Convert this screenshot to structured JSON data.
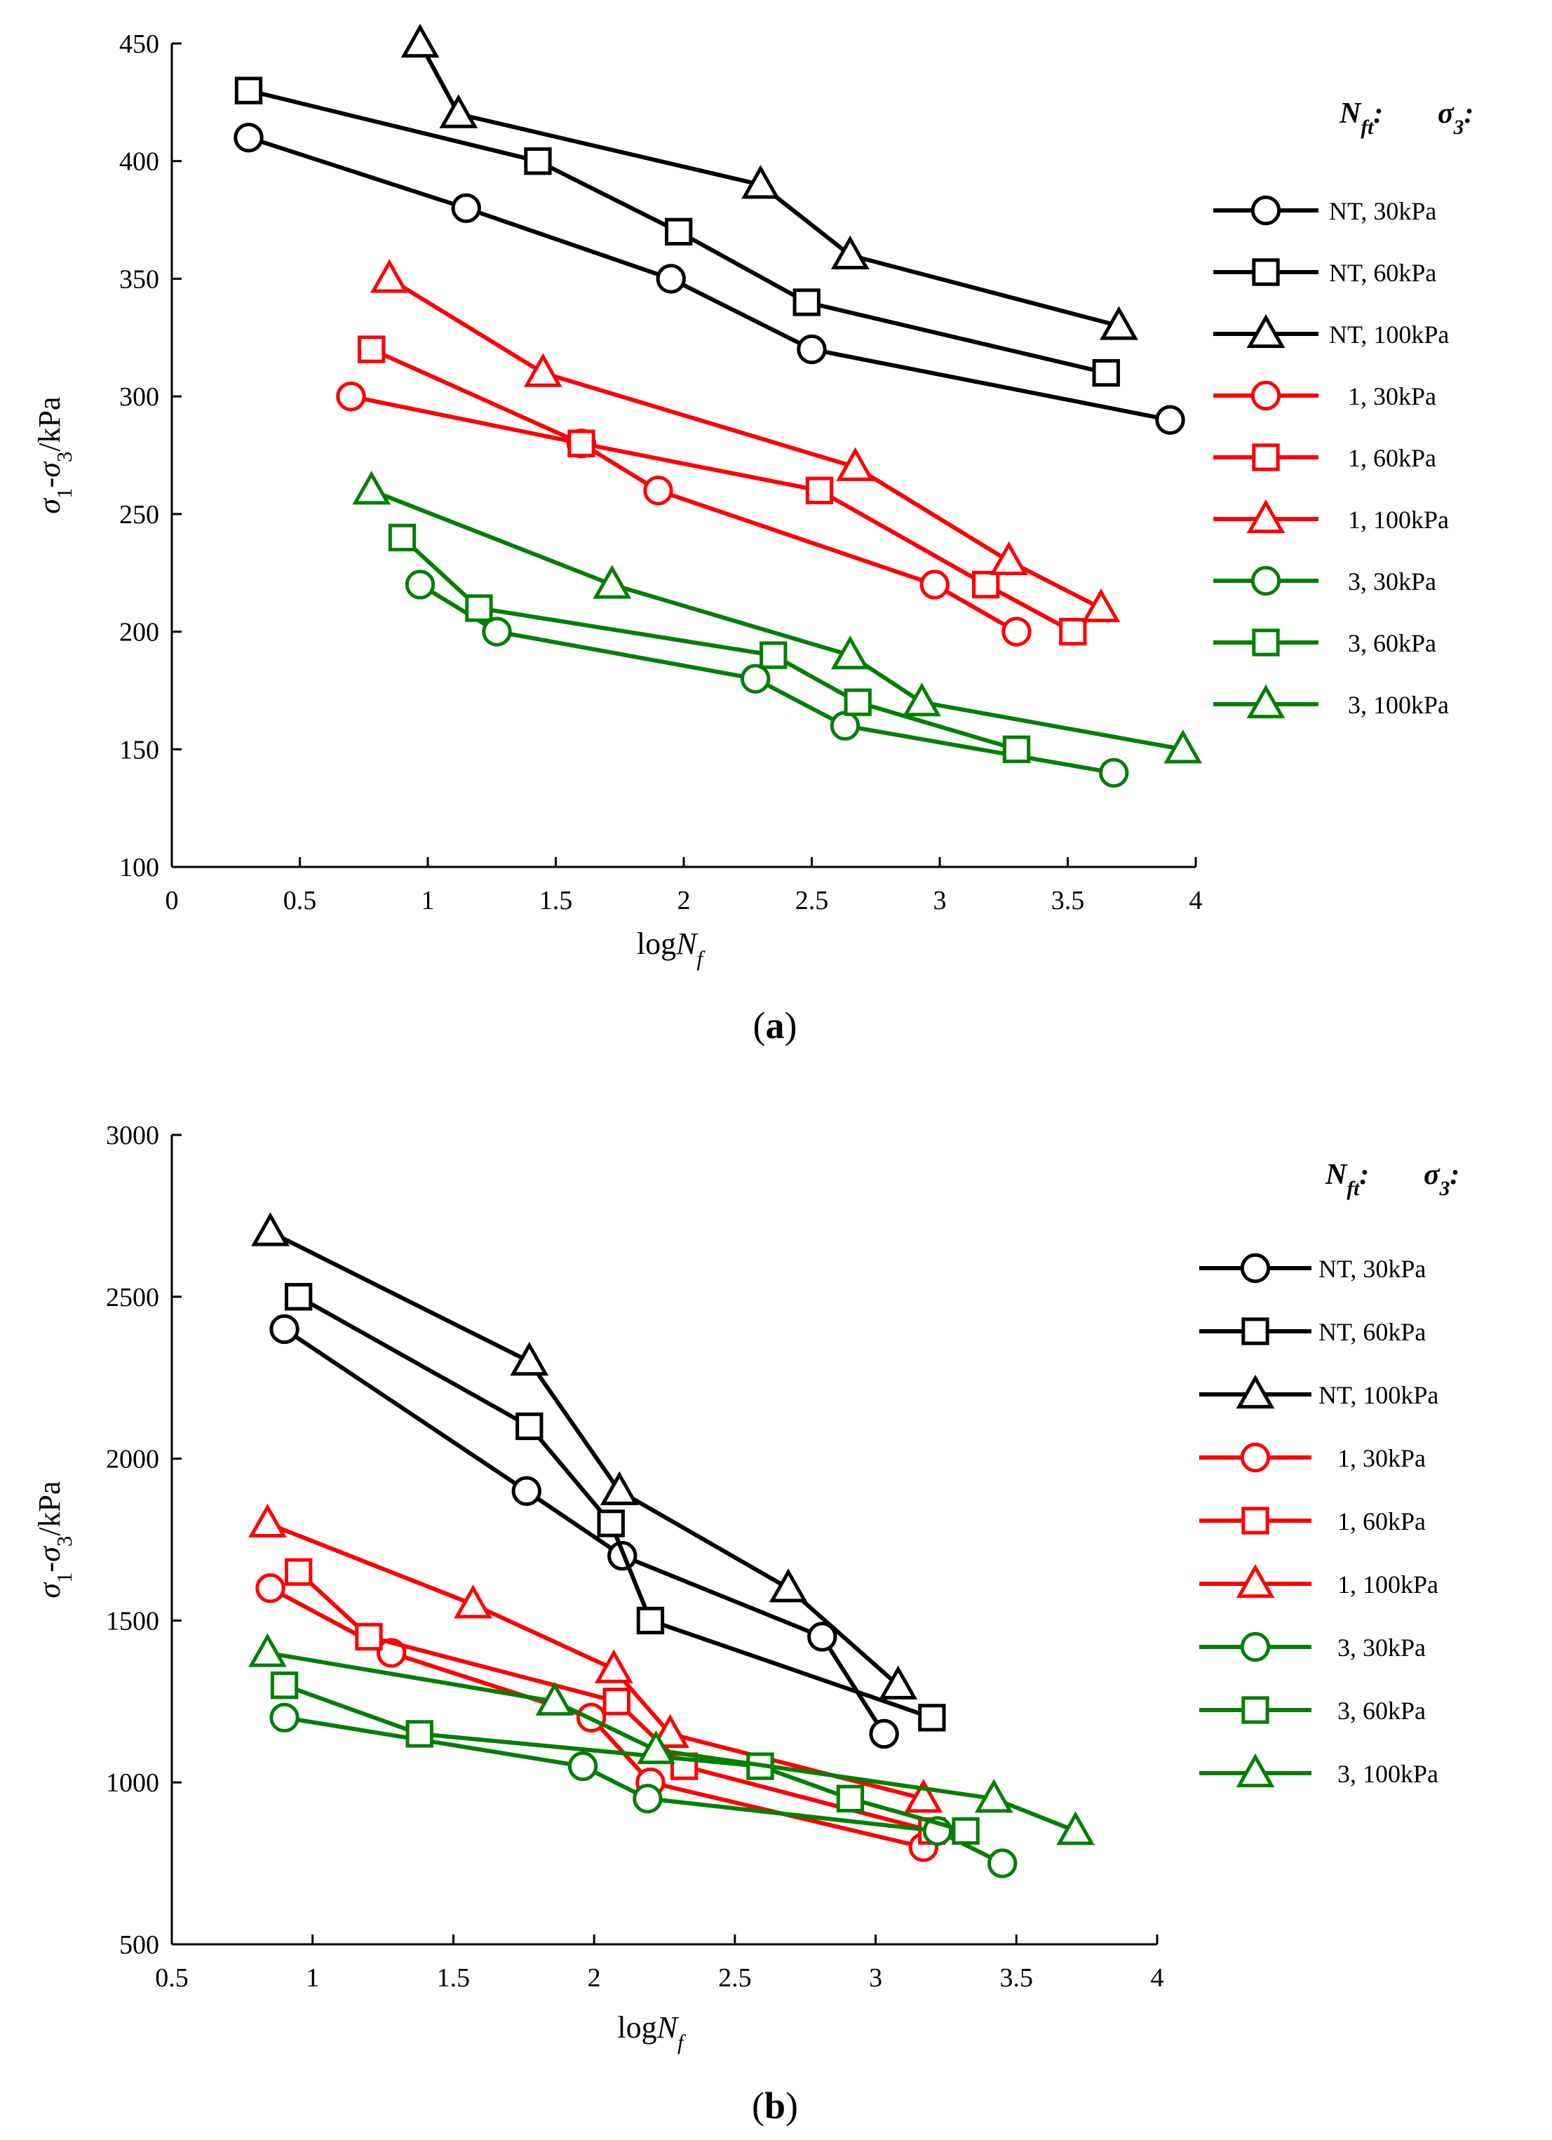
{
  "chart_data": [
    {
      "type": "line",
      "subtitle": "(a)",
      "xlabel": "logN_f",
      "ylabel": "σ1-σ3/kPa",
      "xlim": [
        0,
        4
      ],
      "ylim": [
        100,
        450
      ],
      "xticks": [
        "0",
        "0.5",
        "1",
        "1.5",
        "2",
        "2.5",
        "3",
        "3.5",
        "4"
      ],
      "yticks": [
        "100",
        "150",
        "200",
        "250",
        "300",
        "350",
        "400",
        "450"
      ],
      "legend_header": {
        "nft": "N_ft:",
        "sigma": "σ3:"
      },
      "series": [
        {
          "name": "NT, 30kPa",
          "nft": "NT",
          "sigma3": "30kPa",
          "color": "#000000",
          "marker": "circle",
          "x": [
            0.3,
            1.15,
            1.95,
            2.5,
            3.9
          ],
          "y": [
            410,
            380,
            350,
            320,
            290
          ]
        },
        {
          "name": "NT, 60kPa",
          "nft": "NT",
          "sigma3": "60kPa",
          "color": "#000000",
          "marker": "square",
          "x": [
            0.3,
            1.43,
            1.98,
            2.48,
            3.65
          ],
          "y": [
            430,
            400,
            370,
            340,
            310
          ]
        },
        {
          "name": "NT, 100kPa",
          "nft": "NT",
          "sigma3": "100kPa",
          "color": "#000000",
          "marker": "triangle",
          "x": [
            0.97,
            1.12,
            2.3,
            2.65,
            3.7
          ],
          "y": [
            450,
            420,
            390,
            360,
            330
          ]
        },
        {
          "name": "1, 30kPa",
          "nft": "1",
          "sigma3": "30kPa",
          "color": "#ff0000",
          "marker": "circle",
          "x": [
            0.7,
            1.6,
            1.9,
            2.98,
            3.3
          ],
          "y": [
            300,
            280,
            260,
            220,
            200
          ]
        },
        {
          "name": "1, 60kPa",
          "nft": "1",
          "sigma3": "60kPa",
          "color": "#ff0000",
          "marker": "square",
          "x": [
            0.78,
            1.6,
            2.53,
            3.18,
            3.52
          ],
          "y": [
            320,
            280,
            260,
            220,
            200
          ]
        },
        {
          "name": "1, 100kPa",
          "nft": "1",
          "sigma3": "100kPa",
          "color": "#ff0000",
          "marker": "triangle",
          "x": [
            0.85,
            1.45,
            2.67,
            3.27,
            3.63
          ],
          "y": [
            350,
            310,
            270,
            230,
            210
          ]
        },
        {
          "name": "3, 30kPa",
          "nft": "3",
          "sigma3": "30kPa",
          "color": "#008000",
          "marker": "circle",
          "x": [
            0.97,
            1.27,
            2.28,
            2.63,
            3.68
          ],
          "y": [
            220,
            200,
            180,
            160,
            140
          ]
        },
        {
          "name": "3, 60kPa",
          "nft": "3",
          "sigma3": "60kPa",
          "color": "#008000",
          "marker": "square",
          "x": [
            0.9,
            1.2,
            2.35,
            2.68,
            3.3
          ],
          "y": [
            240,
            210,
            190,
            170,
            150
          ]
        },
        {
          "name": "3, 100kPa",
          "nft": "3",
          "sigma3": "100kPa",
          "color": "#008000",
          "marker": "triangle",
          "x": [
            0.78,
            1.72,
            2.65,
            2.93,
            3.95
          ],
          "y": [
            260,
            220,
            190,
            170,
            150
          ]
        }
      ]
    },
    {
      "type": "line",
      "subtitle": "(b)",
      "xlabel": "logN_f",
      "ylabel": "σ1-σ3/kPa",
      "xlim": [
        0.5,
        4
      ],
      "ylim": [
        500,
        3000
      ],
      "xticks": [
        "0.5",
        "1",
        "1.5",
        "2",
        "2.5",
        "3",
        "3.5",
        "4"
      ],
      "yticks": [
        "500",
        "1000",
        "1500",
        "2000",
        "2500",
        "3000"
      ],
      "legend_header": {
        "nft": "N_ft:",
        "sigma": "σ3:"
      },
      "series": [
        {
          "name": "NT, 30kPa",
          "nft": "NT",
          "sigma3": "30kPa",
          "color": "#000000",
          "marker": "circle",
          "x": [
            0.9,
            1.76,
            2.1,
            2.81,
            3.03
          ],
          "y": [
            2400,
            1900,
            1700,
            1450,
            1150
          ]
        },
        {
          "name": "NT, 60kPa",
          "nft": "NT",
          "sigma3": "60kPa",
          "color": "#000000",
          "marker": "square",
          "x": [
            0.95,
            1.77,
            2.06,
            2.2,
            3.2
          ],
          "y": [
            2500,
            2100,
            1800,
            1500,
            1200
          ]
        },
        {
          "name": "NT, 100kPa",
          "nft": "NT",
          "sigma3": "100kPa",
          "color": "#000000",
          "marker": "triangle",
          "x": [
            0.85,
            1.77,
            2.09,
            2.69,
            3.08
          ],
          "y": [
            2700,
            2300,
            1900,
            1600,
            1300
          ]
        },
        {
          "name": "1, 30kPa",
          "nft": "1",
          "sigma3": "30kPa",
          "color": "#ff0000",
          "marker": "circle",
          "x": [
            0.85,
            1.28,
            1.99,
            2.2,
            3.17
          ],
          "y": [
            1600,
            1400,
            1200,
            1000,
            800
          ]
        },
        {
          "name": "1, 60kPa",
          "nft": "1",
          "sigma3": "60kPa",
          "color": "#ff0000",
          "marker": "square",
          "x": [
            0.95,
            1.2,
            2.08,
            2.32,
            3.2
          ],
          "y": [
            1650,
            1450,
            1250,
            1050,
            850
          ]
        },
        {
          "name": "1, 100kPa",
          "nft": "1",
          "sigma3": "100kPa",
          "color": "#ff0000",
          "marker": "triangle",
          "x": [
            0.84,
            1.57,
            2.07,
            2.27,
            3.17
          ],
          "y": [
            1800,
            1550,
            1350,
            1150,
            950
          ]
        },
        {
          "name": "3, 30kPa",
          "nft": "3",
          "sigma3": "30kPa",
          "color": "#008000",
          "marker": "circle",
          "x": [
            0.9,
            1.96,
            2.19,
            3.22,
            3.45
          ],
          "y": [
            1200,
            1050,
            950,
            850,
            750
          ]
        },
        {
          "name": "3, 60kPa",
          "nft": "3",
          "sigma3": "60kPa",
          "color": "#008000",
          "marker": "square",
          "x": [
            0.9,
            1.38,
            2.59,
            2.91,
            3.32
          ],
          "y": [
            1300,
            1150,
            1050,
            950,
            850
          ]
        },
        {
          "name": "3, 100kPa",
          "nft": "3",
          "sigma3": "100kPa",
          "color": "#008000",
          "marker": "triangle",
          "x": [
            0.84,
            1.86,
            2.22,
            3.42,
            3.71
          ],
          "y": [
            1400,
            1250,
            1100,
            950,
            850
          ]
        }
      ]
    }
  ]
}
